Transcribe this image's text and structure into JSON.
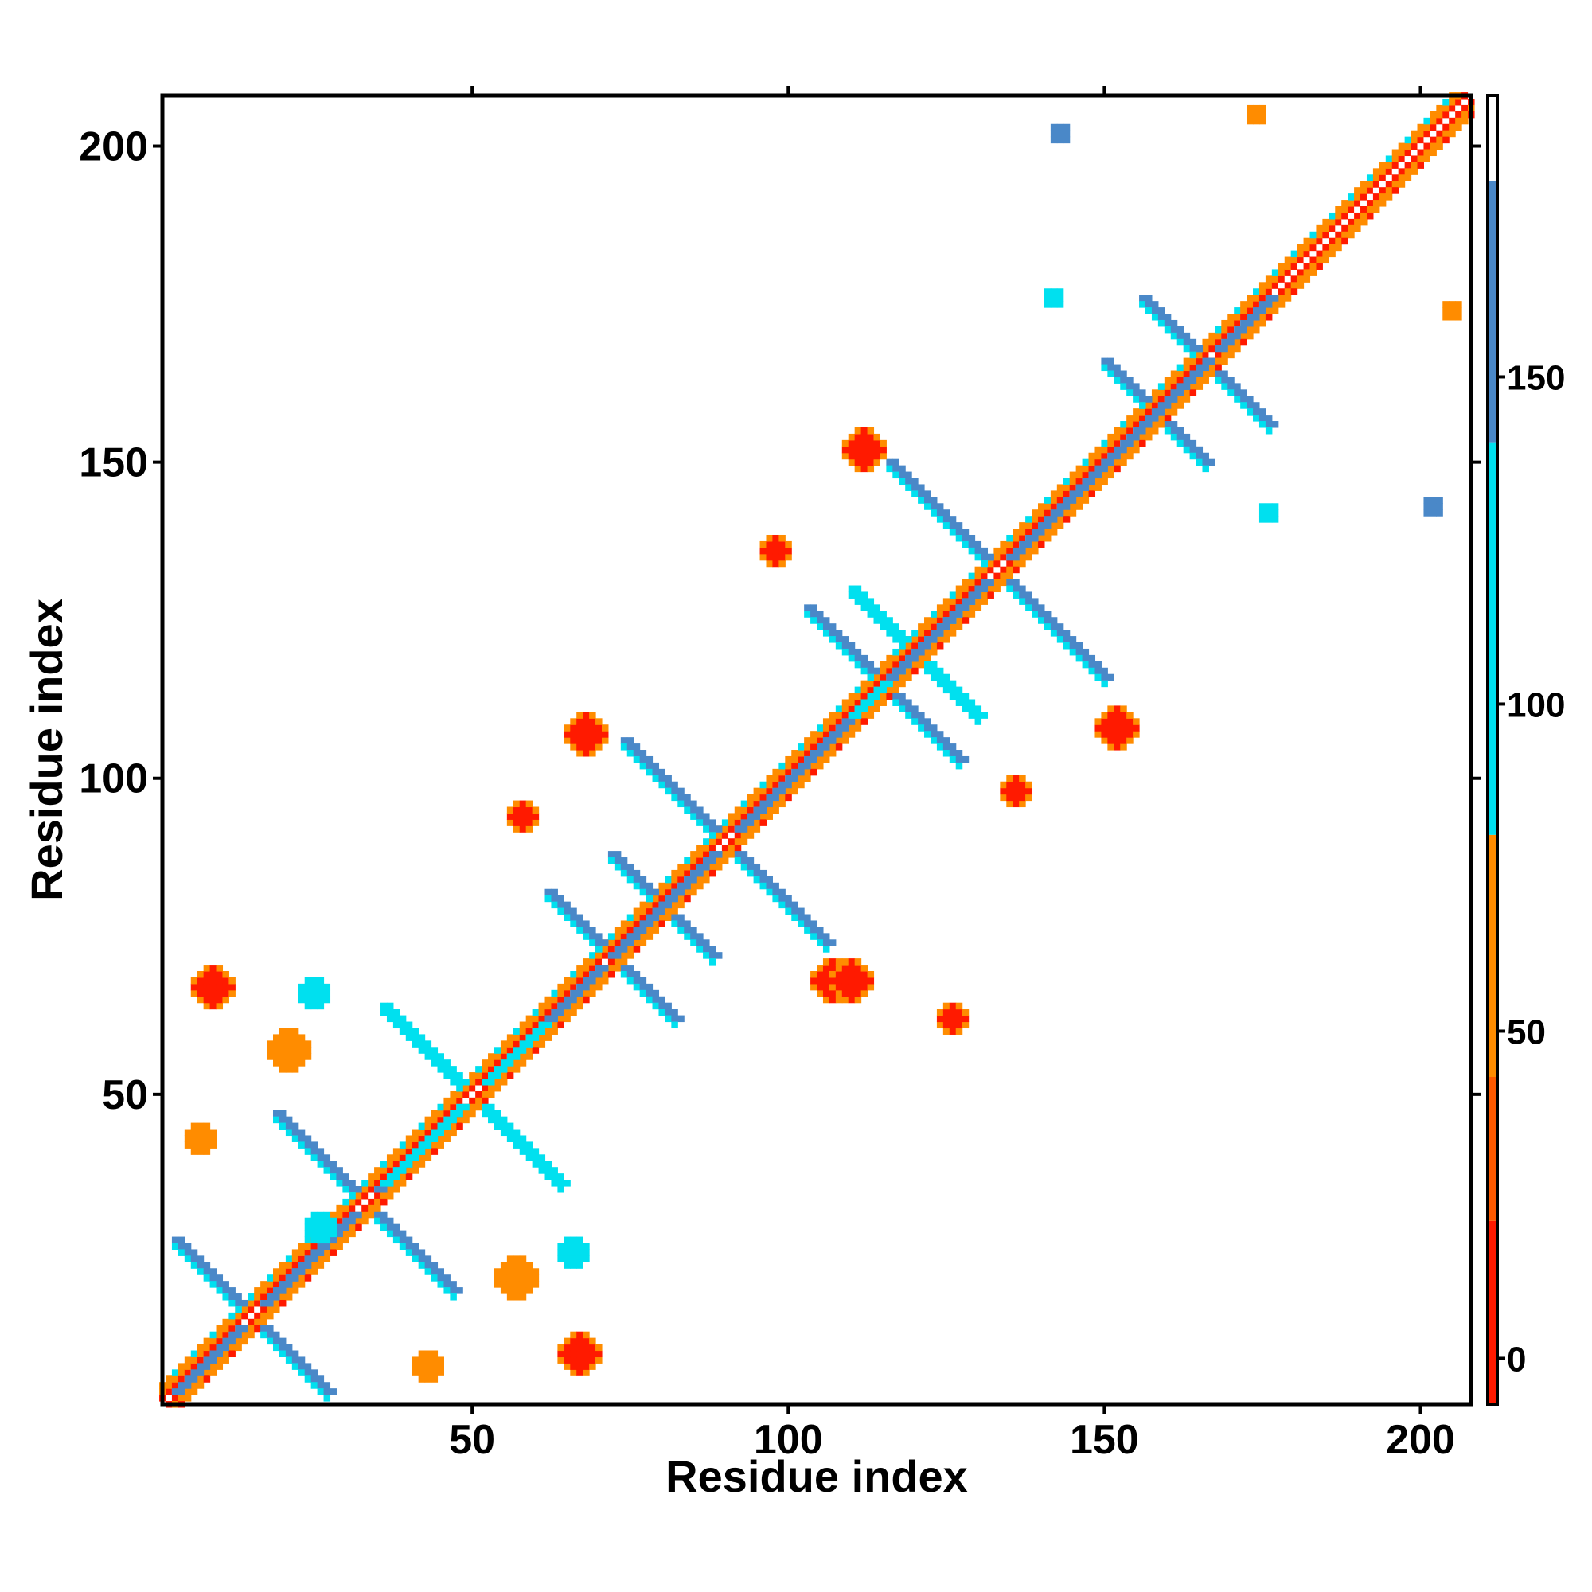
{
  "chart_data": {
    "type": "heatmap",
    "title": "",
    "xlabel": "Residue index",
    "ylabel": "Residue index",
    "xlim": [
      1,
      208
    ],
    "ylim": [
      1,
      208
    ],
    "x_ticks": [
      50,
      100,
      150,
      200
    ],
    "y_ticks": [
      50,
      100,
      150,
      200
    ],
    "x_tick_labels": [
      "50",
      "100",
      "150",
      "200"
    ],
    "y_tick_labels": [
      "50",
      "100",
      "150",
      "200"
    ],
    "colorbar": {
      "range": [
        -7,
        193
      ],
      "ticks": [
        0,
        50,
        100,
        150
      ],
      "tick_labels": [
        "0",
        "50",
        "100",
        "150"
      ],
      "bands": [
        {
          "from": -7,
          "to": 21,
          "color": "#ff1a00"
        },
        {
          "from": 21,
          "to": 43,
          "color": "#ff5a00"
        },
        {
          "from": 43,
          "to": 80,
          "color": "#ff8c00"
        },
        {
          "from": 80,
          "to": 140,
          "color": "#00e0ef"
        },
        {
          "from": 140,
          "to": 180,
          "color": "#4a88c8"
        },
        {
          "from": 180,
          "to": 193,
          "color": "#ffffff"
        }
      ]
    },
    "colors": {
      "red": "#ff1a00",
      "orange": "#ff8c00",
      "cyan": "#00e0ef",
      "steelblue": "#4a88c8"
    },
    "diagonal": {
      "start": 1,
      "end": 208
    },
    "features": [
      {
        "kind": "cross",
        "center": [
          15,
          15
        ],
        "arm": 12,
        "color": "steelblue"
      },
      {
        "kind": "cross",
        "center": [
          33,
          33
        ],
        "arm": 14,
        "color": "steelblue"
      },
      {
        "kind": "cross",
        "center": [
          50,
          50
        ],
        "arm": 14,
        "color": "cyan"
      },
      {
        "kind": "cross",
        "center": [
          72,
          72
        ],
        "arm": 10,
        "color": "steelblue"
      },
      {
        "kind": "cross",
        "center": [
          80,
          80
        ],
        "arm": 8,
        "color": "steelblue"
      },
      {
        "kind": "cross",
        "center": [
          90,
          90
        ],
        "arm": 16,
        "color": "steelblue"
      },
      {
        "kind": "cross",
        "center": [
          115,
          115
        ],
        "arm": 12,
        "color": "steelblue"
      },
      {
        "kind": "cross",
        "center": [
          120,
          120
        ],
        "arm": 10,
        "color": "cyan"
      },
      {
        "kind": "cross",
        "center": [
          133,
          133
        ],
        "arm": 17,
        "color": "steelblue"
      },
      {
        "kind": "cross",
        "center": [
          158,
          158
        ],
        "arm": 8,
        "color": "steelblue"
      },
      {
        "kind": "cross",
        "center": [
          166,
          166
        ],
        "arm": 10,
        "color": "steelblue"
      },
      {
        "kind": "blob",
        "center": [
          9,
          67
        ],
        "size": 3,
        "color": "red"
      },
      {
        "kind": "blob",
        "center": [
          67,
          9
        ],
        "size": 3,
        "color": "red"
      },
      {
        "kind": "blob",
        "center": [
          68,
          107
        ],
        "size": 3,
        "color": "red"
      },
      {
        "kind": "blob",
        "center": [
          107,
          68
        ],
        "size": 3,
        "color": "red"
      },
      {
        "kind": "blob",
        "center": [
          110,
          68
        ],
        "size": 3,
        "color": "red"
      },
      {
        "kind": "blob",
        "center": [
          98,
          136
        ],
        "size": 2,
        "color": "red"
      },
      {
        "kind": "blob",
        "center": [
          136,
          98
        ],
        "size": 2,
        "color": "red"
      },
      {
        "kind": "blob",
        "center": [
          112,
          152
        ],
        "size": 3,
        "color": "red"
      },
      {
        "kind": "blob",
        "center": [
          152,
          108
        ],
        "size": 3,
        "color": "red"
      },
      {
        "kind": "blob",
        "center": [
          58,
          94
        ],
        "size": 2,
        "color": "red"
      },
      {
        "kind": "blob",
        "center": [
          126,
          62
        ],
        "size": 2,
        "color": "red"
      },
      {
        "kind": "blob",
        "center": [
          21,
          57
        ],
        "size": 3,
        "color": "orange"
      },
      {
        "kind": "blob",
        "center": [
          57,
          21
        ],
        "size": 3,
        "color": "orange"
      },
      {
        "kind": "blob",
        "center": [
          43,
          7
        ],
        "size": 2,
        "color": "orange"
      },
      {
        "kind": "blob",
        "center": [
          7,
          43
        ],
        "size": 2,
        "color": "orange"
      },
      {
        "kind": "blob",
        "center": [
          26,
          29
        ],
        "size": 2,
        "color": "cyan"
      },
      {
        "kind": "blob",
        "center": [
          66,
          25
        ],
        "size": 2,
        "color": "cyan"
      },
      {
        "kind": "blob",
        "center": [
          25,
          66
        ],
        "size": 2,
        "color": "cyan"
      },
      {
        "kind": "blob",
        "center": [
          143,
          202
        ],
        "size": 1,
        "color": "steelblue"
      },
      {
        "kind": "blob",
        "center": [
          202,
          143
        ],
        "size": 1,
        "color": "steelblue"
      },
      {
        "kind": "blob",
        "center": [
          174,
          205
        ],
        "size": 1,
        "color": "orange"
      },
      {
        "kind": "blob",
        "center": [
          205,
          174
        ],
        "size": 1,
        "color": "orange"
      },
      {
        "kind": "blob",
        "center": [
          142,
          176
        ],
        "size": 1,
        "color": "cyan"
      },
      {
        "kind": "blob",
        "center": [
          176,
          142
        ],
        "size": 1,
        "color": "cyan"
      }
    ]
  }
}
